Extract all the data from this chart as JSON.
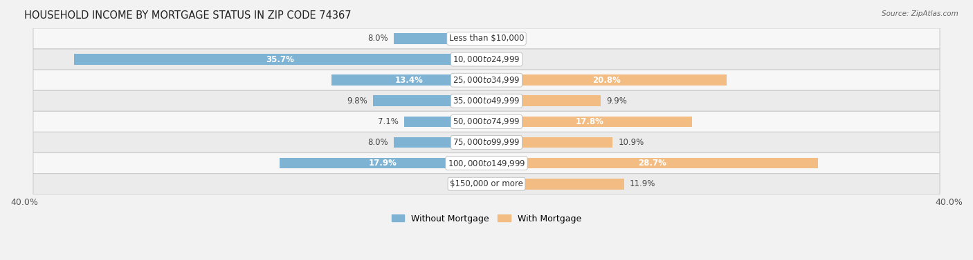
{
  "title": "Household Income by Mortgage Status in Zip Code 74367",
  "source": "Source: ZipAtlas.com",
  "categories": [
    "Less than $10,000",
    "$10,000 to $24,999",
    "$25,000 to $34,999",
    "$35,000 to $49,999",
    "$50,000 to $74,999",
    "$75,000 to $99,999",
    "$100,000 to $149,999",
    "$150,000 or more"
  ],
  "without_mortgage": [
    8.0,
    35.7,
    13.4,
    9.8,
    7.1,
    8.0,
    17.9,
    0.0
  ],
  "with_mortgage": [
    0.0,
    0.0,
    20.8,
    9.9,
    17.8,
    10.9,
    28.7,
    11.9
  ],
  "color_without": "#7eb3d3",
  "color_with": "#f2bc82",
  "axis_limit": 40.0,
  "row_bg_even": "#f7f7f7",
  "row_bg_odd": "#ebebeb",
  "title_fontsize": 10.5,
  "label_fontsize": 8.5,
  "category_fontsize": 8.5,
  "legend_fontsize": 9,
  "axis_label_fontsize": 9,
  "bar_height": 0.52,
  "inside_label_threshold": 12.0
}
